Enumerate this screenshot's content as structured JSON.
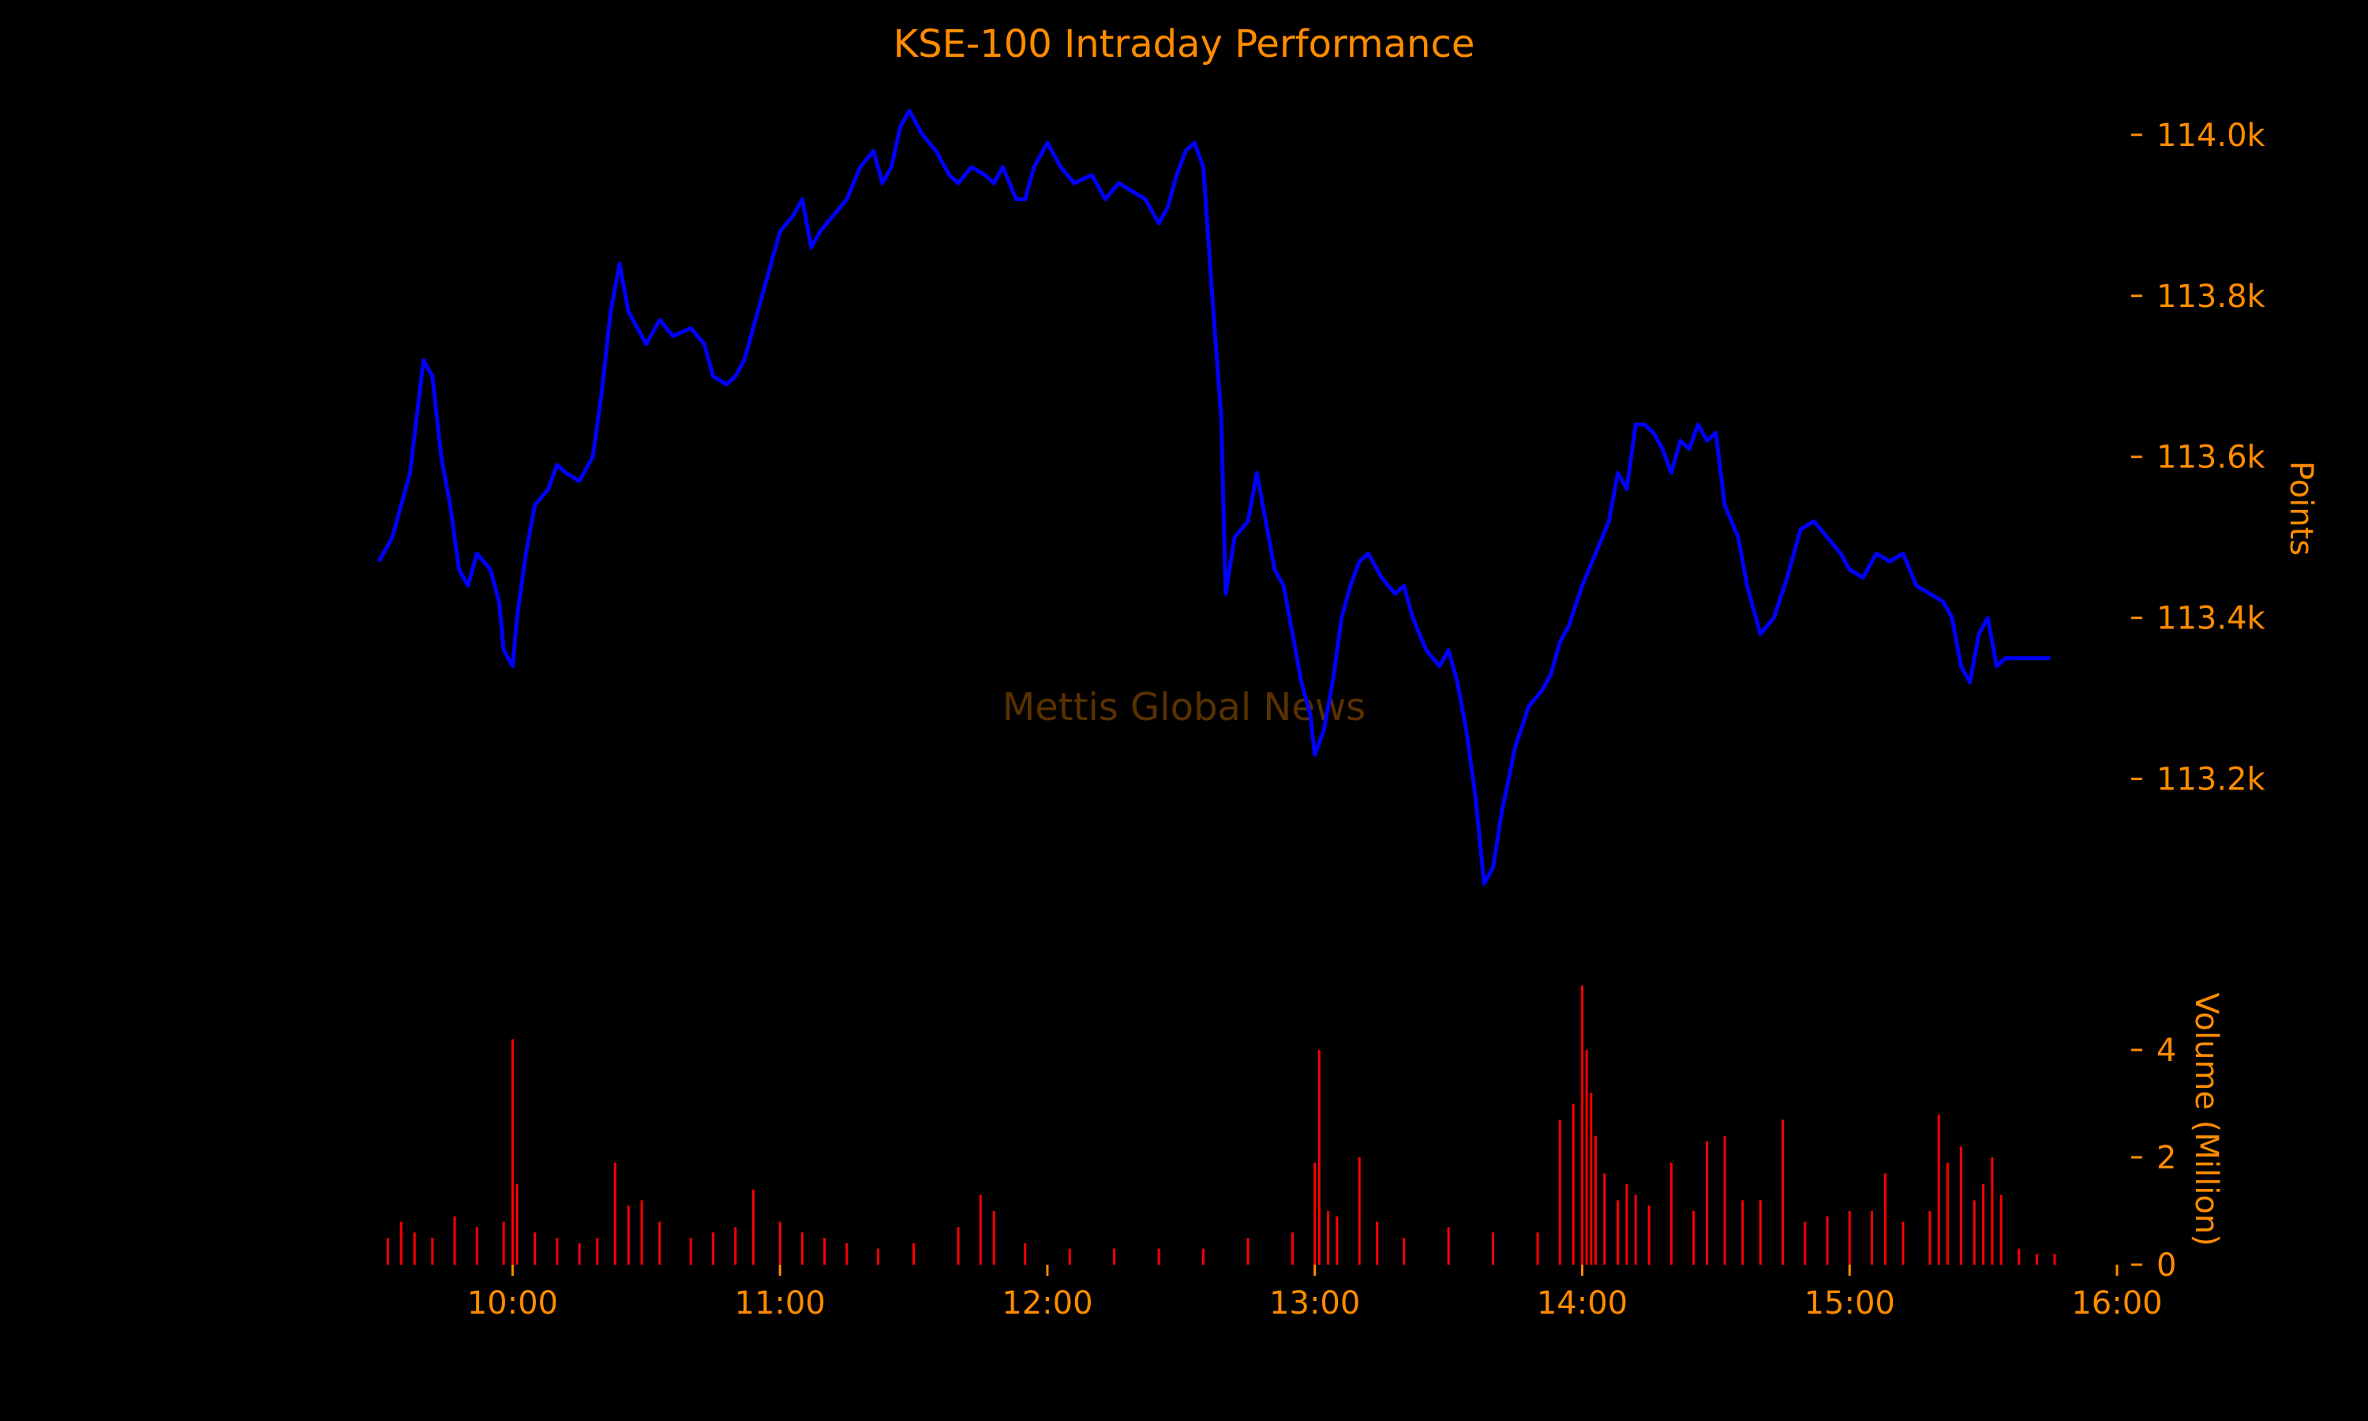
{
  "chart_data": [
    {
      "type": "line",
      "title": "KSE-100 Intraday Performance",
      "ylabel": "Points",
      "ylim": [
        113030,
        114040
      ],
      "ytick_values": [
        113200,
        113400,
        113600,
        113800,
        114000
      ],
      "ytick_labels": [
        "113.2k",
        "113.4k",
        "113.6k",
        "113.8k",
        "114.0k"
      ],
      "xlim": [
        "09:30",
        "16:00"
      ],
      "grid": false,
      "series": [
        {
          "color": "#0000ff",
          "points": [
            [
              "09:30",
              113470
            ],
            [
              "09:33",
              113500
            ],
            [
              "09:35",
              113540
            ],
            [
              "09:37",
              113580
            ],
            [
              "09:40",
              113720
            ],
            [
              "09:42",
              113700
            ],
            [
              "09:44",
              113600
            ],
            [
              "09:46",
              113540
            ],
            [
              "09:48",
              113460
            ],
            [
              "09:50",
              113440
            ],
            [
              "09:52",
              113480
            ],
            [
              "09:55",
              113460
            ],
            [
              "09:57",
              113420
            ],
            [
              "09:58",
              113360
            ],
            [
              "10:00",
              113340
            ],
            [
              "10:01",
              113400
            ],
            [
              "10:03",
              113480
            ],
            [
              "10:05",
              113540
            ],
            [
              "10:08",
              113560
            ],
            [
              "10:10",
              113590
            ],
            [
              "10:12",
              113580
            ],
            [
              "10:15",
              113570
            ],
            [
              "10:18",
              113600
            ],
            [
              "10:20",
              113680
            ],
            [
              "10:22",
              113780
            ],
            [
              "10:24",
              113840
            ],
            [
              "10:26",
              113780
            ],
            [
              "10:28",
              113760
            ],
            [
              "10:30",
              113740
            ],
            [
              "10:33",
              113770
            ],
            [
              "10:36",
              113750
            ],
            [
              "10:40",
              113760
            ],
            [
              "10:43",
              113740
            ],
            [
              "10:45",
              113700
            ],
            [
              "10:48",
              113690
            ],
            [
              "10:50",
              113700
            ],
            [
              "10:52",
              113720
            ],
            [
              "10:55",
              113780
            ],
            [
              "10:58",
              113840
            ],
            [
              "11:00",
              113880
            ],
            [
              "11:03",
              113900
            ],
            [
              "11:05",
              113920
            ],
            [
              "11:07",
              113860
            ],
            [
              "11:09",
              113880
            ],
            [
              "11:12",
              113900
            ],
            [
              "11:15",
              113920
            ],
            [
              "11:18",
              113960
            ],
            [
              "11:21",
              113980
            ],
            [
              "11:23",
              113940
            ],
            [
              "11:25",
              113960
            ],
            [
              "11:27",
              114010
            ],
            [
              "11:29",
              114030
            ],
            [
              "11:32",
              114000
            ],
            [
              "11:35",
              113980
            ],
            [
              "11:38",
              113950
            ],
            [
              "11:40",
              113940
            ],
            [
              "11:43",
              113960
            ],
            [
              "11:46",
              113950
            ],
            [
              "11:48",
              113940
            ],
            [
              "11:50",
              113960
            ],
            [
              "11:53",
              113920
            ],
            [
              "11:55",
              113920
            ],
            [
              "11:57",
              113960
            ],
            [
              "12:00",
              113990
            ],
            [
              "12:03",
              113960
            ],
            [
              "12:06",
              113940
            ],
            [
              "12:10",
              113950
            ],
            [
              "12:13",
              113920
            ],
            [
              "12:16",
              113940
            ],
            [
              "12:19",
              113930
            ],
            [
              "12:22",
              113920
            ],
            [
              "12:25",
              113890
            ],
            [
              "12:27",
              113910
            ],
            [
              "12:29",
              113950
            ],
            [
              "12:31",
              113980
            ],
            [
              "12:33",
              113990
            ],
            [
              "12:35",
              113960
            ],
            [
              "12:37",
              113800
            ],
            [
              "12:39",
              113650
            ],
            [
              "12:40",
              113430
            ],
            [
              "12:42",
              113500
            ],
            [
              "12:45",
              113520
            ],
            [
              "12:47",
              113580
            ],
            [
              "12:49",
              113520
            ],
            [
              "12:51",
              113460
            ],
            [
              "12:53",
              113440
            ],
            [
              "12:55",
              113380
            ],
            [
              "12:57",
              113320
            ],
            [
              "12:59",
              113280
            ],
            [
              "13:00",
              113230
            ],
            [
              "13:02",
              113260
            ],
            [
              "13:04",
              113320
            ],
            [
              "13:06",
              113400
            ],
            [
              "13:08",
              113440
            ],
            [
              "13:10",
              113470
            ],
            [
              "13:12",
              113480
            ],
            [
              "13:15",
              113450
            ],
            [
              "13:18",
              113430
            ],
            [
              "13:20",
              113440
            ],
            [
              "13:22",
              113400
            ],
            [
              "13:25",
              113360
            ],
            [
              "13:28",
              113340
            ],
            [
              "13:30",
              113360
            ],
            [
              "13:32",
              113320
            ],
            [
              "13:34",
              113260
            ],
            [
              "13:36",
              113180
            ],
            [
              "13:38",
              113070
            ],
            [
              "13:40",
              113090
            ],
            [
              "13:42",
              113160
            ],
            [
              "13:45",
              113240
            ],
            [
              "13:48",
              113290
            ],
            [
              "13:51",
              113310
            ],
            [
              "13:53",
              113330
            ],
            [
              "13:55",
              113370
            ],
            [
              "13:57",
              113390
            ],
            [
              "14:00",
              113440
            ],
            [
              "14:03",
              113480
            ],
            [
              "14:06",
              113520
            ],
            [
              "14:08",
              113580
            ],
            [
              "14:10",
              113560
            ],
            [
              "14:12",
              113640
            ],
            [
              "14:14",
              113640
            ],
            [
              "14:16",
              113630
            ],
            [
              "14:18",
              113610
            ],
            [
              "14:20",
              113580
            ],
            [
              "14:22",
              113620
            ],
            [
              "14:24",
              113610
            ],
            [
              "14:26",
              113640
            ],
            [
              "14:28",
              113620
            ],
            [
              "14:30",
              113630
            ],
            [
              "14:32",
              113540
            ],
            [
              "14:35",
              113500
            ],
            [
              "14:37",
              113440
            ],
            [
              "14:40",
              113380
            ],
            [
              "14:43",
              113400
            ],
            [
              "14:46",
              113450
            ],
            [
              "14:49",
              113510
            ],
            [
              "14:52",
              113520
            ],
            [
              "14:55",
              113500
            ],
            [
              "14:58",
              113480
            ],
            [
              "15:00",
              113460
            ],
            [
              "15:03",
              113450
            ],
            [
              "15:06",
              113480
            ],
            [
              "15:09",
              113470
            ],
            [
              "15:12",
              113480
            ],
            [
              "15:15",
              113440
            ],
            [
              "15:18",
              113430
            ],
            [
              "15:21",
              113420
            ],
            [
              "15:23",
              113400
            ],
            [
              "15:25",
              113340
            ],
            [
              "15:27",
              113320
            ],
            [
              "15:29",
              113380
            ],
            [
              "15:31",
              113400
            ],
            [
              "15:33",
              113340
            ],
            [
              "15:35",
              113350
            ],
            [
              "15:45",
              113350
            ]
          ]
        }
      ]
    },
    {
      "type": "bar",
      "ylabel": "Volume (Million)",
      "ylim": [
        0,
        5.5
      ],
      "ytick_values": [
        0,
        2,
        4
      ],
      "ytick_labels": [
        "0",
        "2",
        "4"
      ],
      "xlim": [
        "09:30",
        "16:00"
      ],
      "xtick_values": [
        "10:00",
        "11:00",
        "12:00",
        "13:00",
        "14:00",
        "15:00",
        "16:00"
      ],
      "xtick_labels": [
        "10:00",
        "11:00",
        "12:00",
        "13:00",
        "14:00",
        "15:00",
        "16:00"
      ],
      "color": "#ff0000",
      "bars": [
        [
          "09:32",
          0.5
        ],
        [
          "09:35",
          0.8
        ],
        [
          "09:38",
          0.6
        ],
        [
          "09:42",
          0.5
        ],
        [
          "09:47",
          0.9
        ],
        [
          "09:52",
          0.7
        ],
        [
          "09:58",
          0.8
        ],
        [
          "10:00",
          4.2
        ],
        [
          "10:01",
          1.5
        ],
        [
          "10:05",
          0.6
        ],
        [
          "10:10",
          0.5
        ],
        [
          "10:15",
          0.4
        ],
        [
          "10:19",
          0.5
        ],
        [
          "10:23",
          1.9
        ],
        [
          "10:26",
          1.1
        ],
        [
          "10:29",
          1.2
        ],
        [
          "10:33",
          0.8
        ],
        [
          "10:40",
          0.5
        ],
        [
          "10:45",
          0.6
        ],
        [
          "10:50",
          0.7
        ],
        [
          "10:54",
          1.4
        ],
        [
          "11:00",
          0.8
        ],
        [
          "11:05",
          0.6
        ],
        [
          "11:10",
          0.5
        ],
        [
          "11:15",
          0.4
        ],
        [
          "11:22",
          0.3
        ],
        [
          "11:30",
          0.4
        ],
        [
          "11:40",
          0.7
        ],
        [
          "11:45",
          1.3
        ],
        [
          "11:48",
          1.0
        ],
        [
          "11:55",
          0.4
        ],
        [
          "12:05",
          0.3
        ],
        [
          "12:15",
          0.3
        ],
        [
          "12:25",
          0.3
        ],
        [
          "12:35",
          0.3
        ],
        [
          "12:45",
          0.5
        ],
        [
          "12:55",
          0.6
        ],
        [
          "13:00",
          1.9
        ],
        [
          "13:01",
          4.0
        ],
        [
          "13:03",
          1.0
        ],
        [
          "13:05",
          0.9
        ],
        [
          "13:10",
          2.0
        ],
        [
          "13:14",
          0.8
        ],
        [
          "13:20",
          0.5
        ],
        [
          "13:30",
          0.7
        ],
        [
          "13:40",
          0.6
        ],
        [
          "13:50",
          0.6
        ],
        [
          "13:55",
          2.7
        ],
        [
          "13:58",
          3.0
        ],
        [
          "14:00",
          5.2
        ],
        [
          "14:01",
          4.0
        ],
        [
          "14:02",
          3.2
        ],
        [
          "14:03",
          2.4
        ],
        [
          "14:05",
          1.7
        ],
        [
          "14:08",
          1.2
        ],
        [
          "14:10",
          1.5
        ],
        [
          "14:12",
          1.3
        ],
        [
          "14:15",
          1.1
        ],
        [
          "14:20",
          1.9
        ],
        [
          "14:25",
          1.0
        ],
        [
          "14:28",
          2.3
        ],
        [
          "14:32",
          2.4
        ],
        [
          "14:36",
          1.2
        ],
        [
          "14:40",
          1.2
        ],
        [
          "14:45",
          2.7
        ],
        [
          "14:50",
          0.8
        ],
        [
          "14:55",
          0.9
        ],
        [
          "15:00",
          1.0
        ],
        [
          "15:05",
          1.0
        ],
        [
          "15:08",
          1.7
        ],
        [
          "15:12",
          0.8
        ],
        [
          "15:18",
          1.0
        ],
        [
          "15:20",
          2.8
        ],
        [
          "15:22",
          1.9
        ],
        [
          "15:25",
          2.2
        ],
        [
          "15:28",
          1.2
        ],
        [
          "15:30",
          1.5
        ],
        [
          "15:32",
          2.0
        ],
        [
          "15:34",
          1.3
        ],
        [
          "15:38",
          0.3
        ],
        [
          "15:42",
          0.2
        ],
        [
          "15:46",
          0.2
        ]
      ]
    }
  ],
  "watermark": "Mettis Global News",
  "colors": {
    "background": "#000000",
    "text": "#ff8c00",
    "line": "#0000ff",
    "volume": "#ff0000"
  }
}
